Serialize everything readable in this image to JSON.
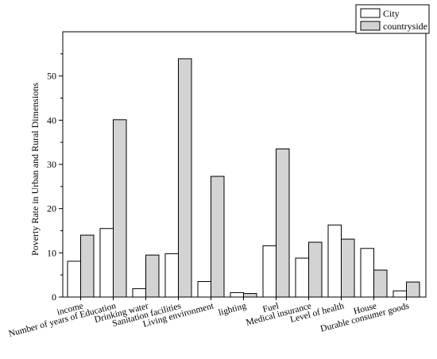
{
  "chart_data": {
    "type": "bar",
    "title": "",
    "xlabel": "",
    "ylabel": "Poverty Rate in Urban and Rural Dimensions",
    "ylim": [
      0,
      60
    ],
    "yticks": [
      0,
      10,
      20,
      30,
      40,
      50
    ],
    "grid": false,
    "legend_position": "top-right",
    "categories": [
      "income",
      "Number of years of Education",
      "Drinking water",
      "Sanitation facilities",
      "Living environment",
      "lighting",
      "Fuel",
      "Medical insurance",
      "Level of health",
      "House",
      "Durable consumer goods"
    ],
    "series": [
      {
        "name": "City",
        "color": "#ffffff",
        "values": [
          8.1,
          15.5,
          1.9,
          9.8,
          3.5,
          1.0,
          11.6,
          8.8,
          16.3,
          11.0,
          1.4
        ]
      },
      {
        "name": "countryside",
        "color": "#d3d3d3",
        "values": [
          14.0,
          40.1,
          9.5,
          53.9,
          27.3,
          0.8,
          33.5,
          12.4,
          13.1,
          6.1,
          3.4
        ]
      }
    ]
  }
}
